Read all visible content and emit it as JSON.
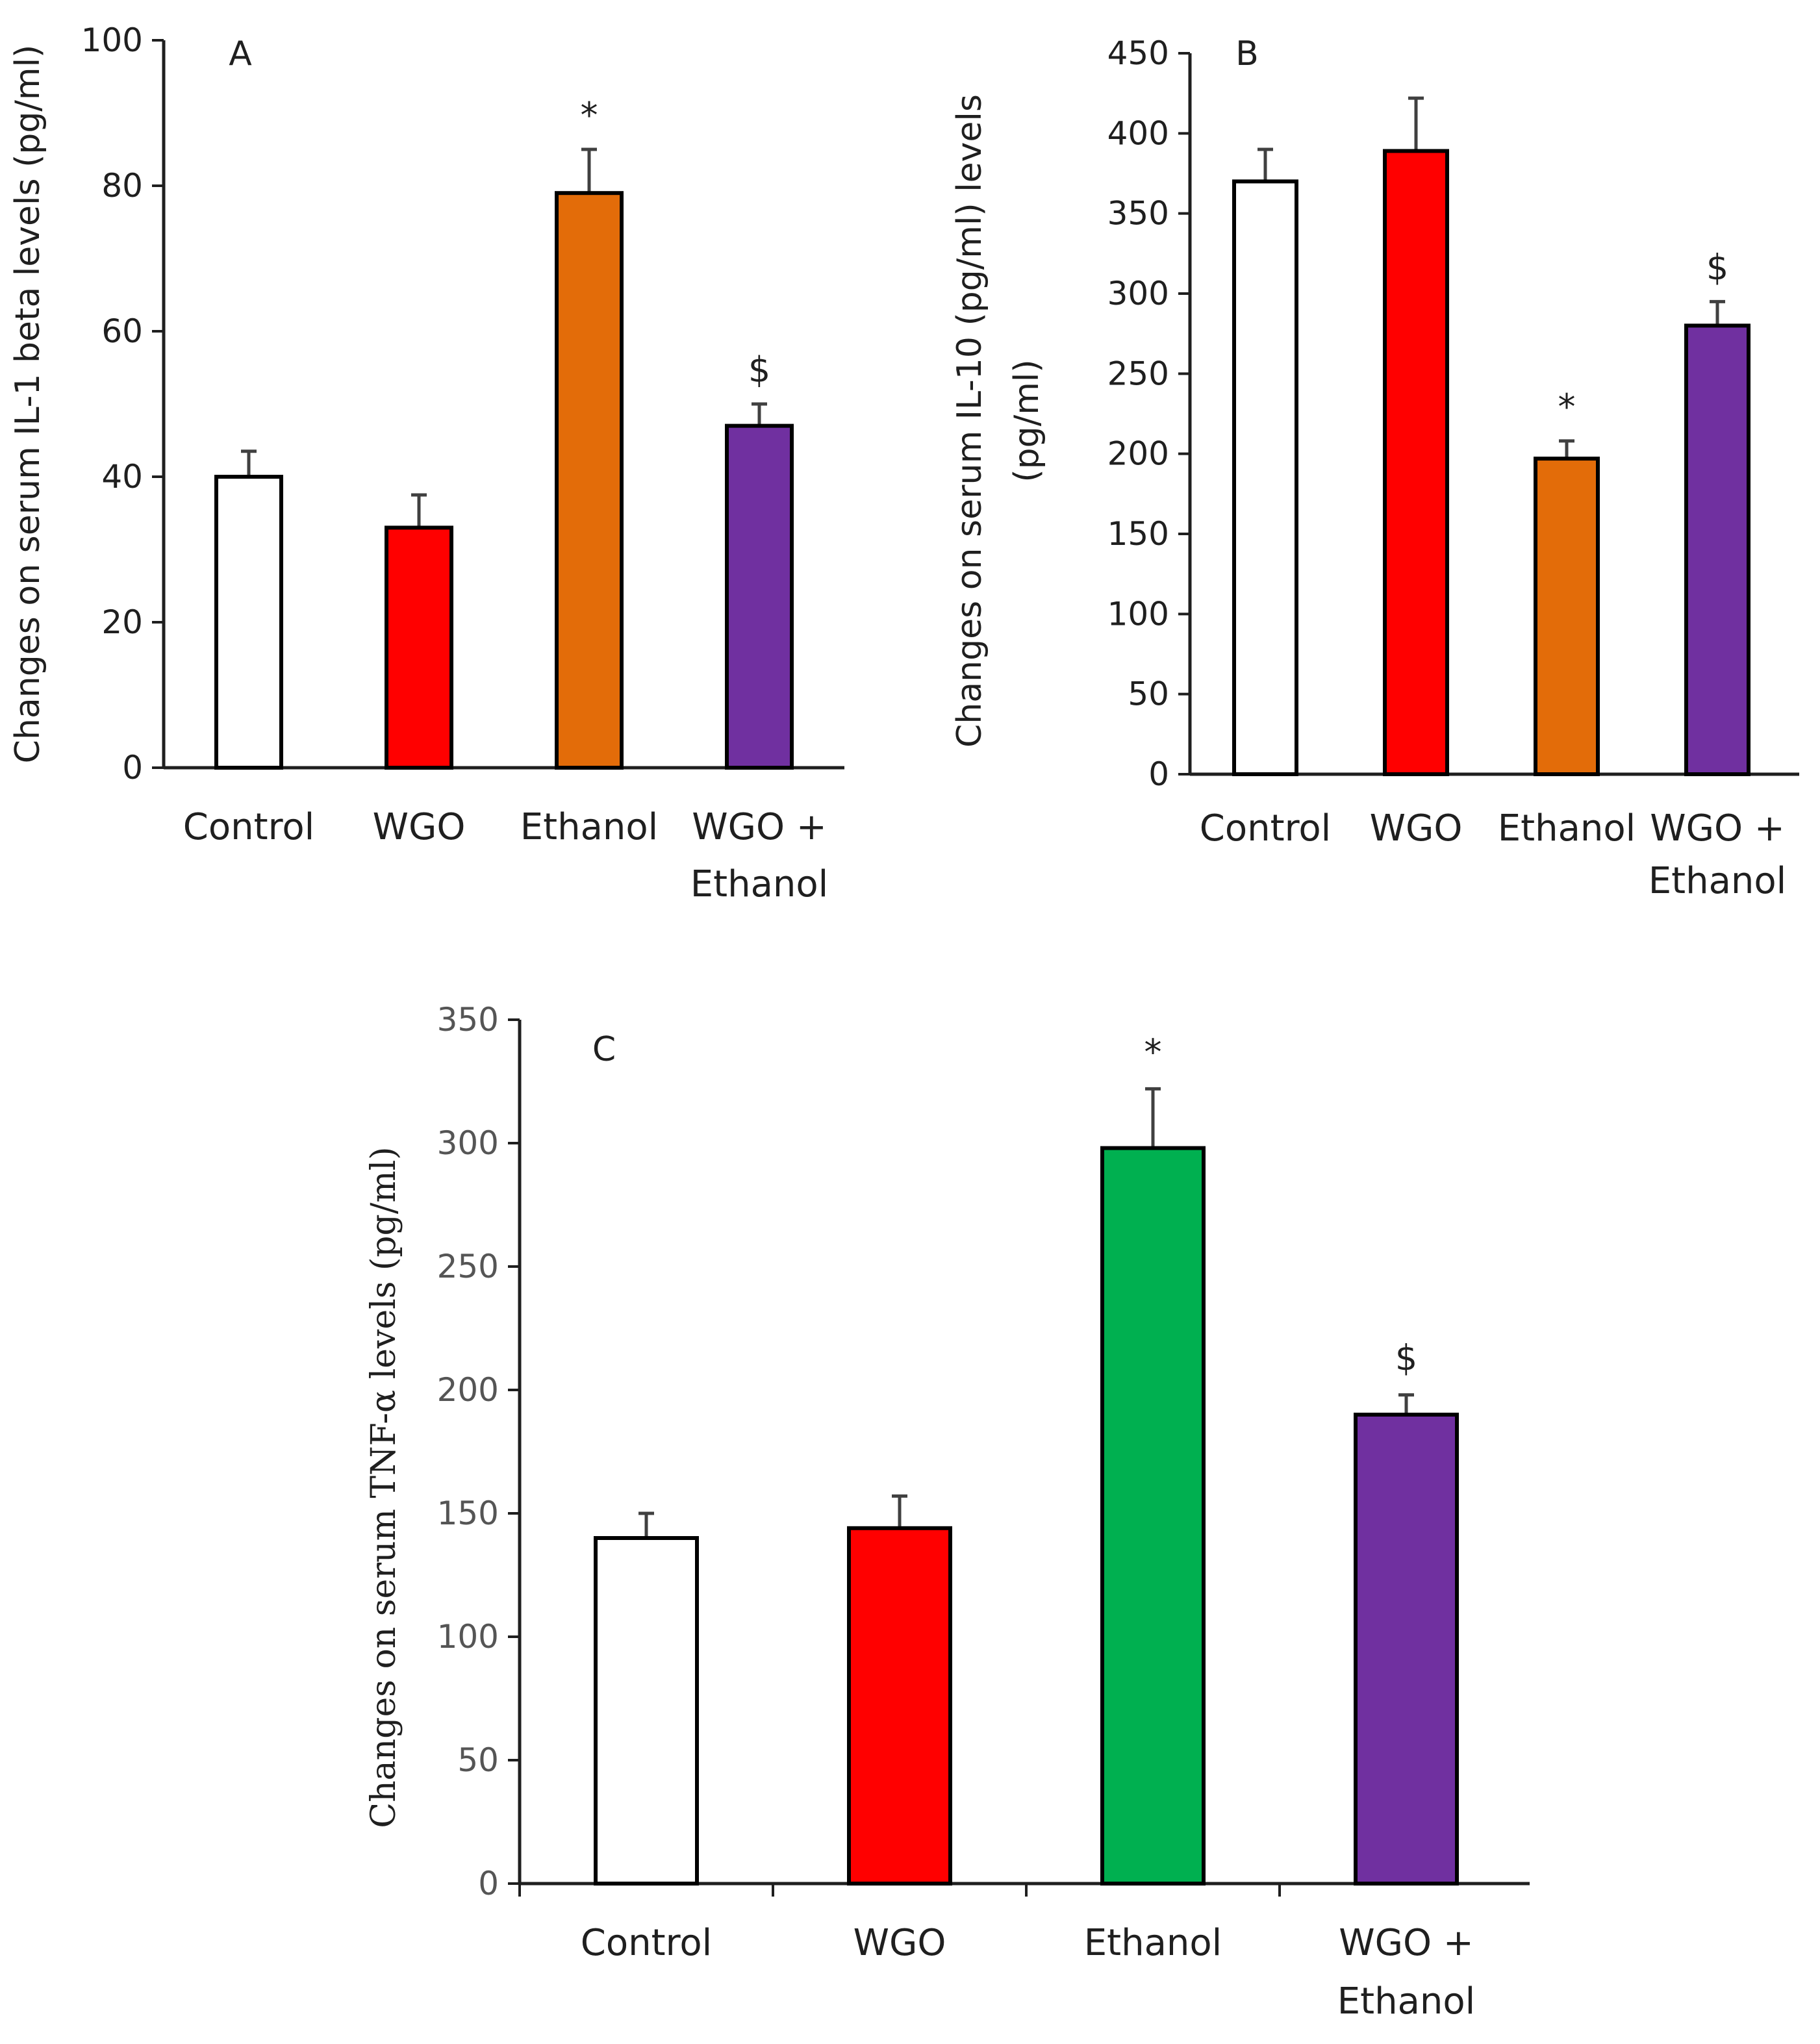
{
  "chart_data": [
    {
      "id": "A",
      "type": "bar",
      "panel_label": "A",
      "title": "",
      "xlabel": "",
      "ylabel": "Changes on serum IL-1 beta levels (pg/ml)",
      "categories": [
        [
          "Control"
        ],
        [
          "WGO"
        ],
        [
          "Ethanol"
        ],
        [
          "WGO +",
          "Ethanol"
        ]
      ],
      "values": [
        40,
        33,
        79,
        47
      ],
      "errors": [
        3.5,
        4.5,
        6,
        3
      ],
      "colors": [
        "#ffffff",
        "#ff0000",
        "#e36c09",
        "#7030a0"
      ],
      "significance": [
        "",
        "",
        "*",
        "$"
      ],
      "ylim": [
        0,
        100
      ],
      "yticks": [
        0,
        20,
        40,
        60,
        80,
        100
      ],
      "yticklabels": [
        "0",
        "20",
        "40",
        "60",
        "80",
        "100"
      ],
      "grid": false,
      "legend": "none"
    },
    {
      "id": "B",
      "type": "bar",
      "panel_label": "B",
      "title": "",
      "xlabel": "",
      "ylabel": [
        "Changes on serum IL-10 (pg/ml) levels",
        "(pg/ml)"
      ],
      "categories": [
        [
          "Control"
        ],
        [
          "WGO"
        ],
        [
          "Ethanol"
        ],
        [
          "WGO +",
          "Ethanol"
        ]
      ],
      "values": [
        370,
        389,
        197,
        280
      ],
      "errors": [
        20,
        33,
        11,
        15
      ],
      "colors": [
        "#ffffff",
        "#ff0000",
        "#e36c09",
        "#7030a0"
      ],
      "significance": [
        "",
        "",
        "*",
        "$"
      ],
      "ylim": [
        0,
        450
      ],
      "yticks": [
        0,
        50,
        100,
        150,
        200,
        250,
        300,
        350,
        400,
        450
      ],
      "yticklabels": [
        "0",
        "50",
        "100",
        "150",
        "200",
        "250",
        "300",
        "350",
        "400",
        "450"
      ],
      "grid": false,
      "legend": "none"
    },
    {
      "id": "C",
      "type": "bar",
      "panel_label": "C",
      "title": "",
      "xlabel": "",
      "ylabel": "Changes on serum TNF-α levels (pg/ml)",
      "categories": [
        [
          "Control"
        ],
        [
          "WGO"
        ],
        [
          "Ethanol"
        ],
        [
          "WGO +",
          "Ethanol"
        ]
      ],
      "values": [
        140,
        144,
        298,
        190
      ],
      "errors": [
        10,
        13,
        24,
        8
      ],
      "colors": [
        "#ffffff",
        "#ff0000",
        "#00b050",
        "#7030a0"
      ],
      "significance": [
        "",
        "",
        "*",
        "$"
      ],
      "ylim": [
        0,
        350
      ],
      "yticks": [
        0,
        50,
        100,
        150,
        200,
        250,
        300,
        350
      ],
      "yticklabels": [
        "0",
        "50",
        "100",
        "150",
        "200",
        "250",
        "300",
        "350"
      ],
      "grid": false,
      "legend": "none"
    }
  ]
}
